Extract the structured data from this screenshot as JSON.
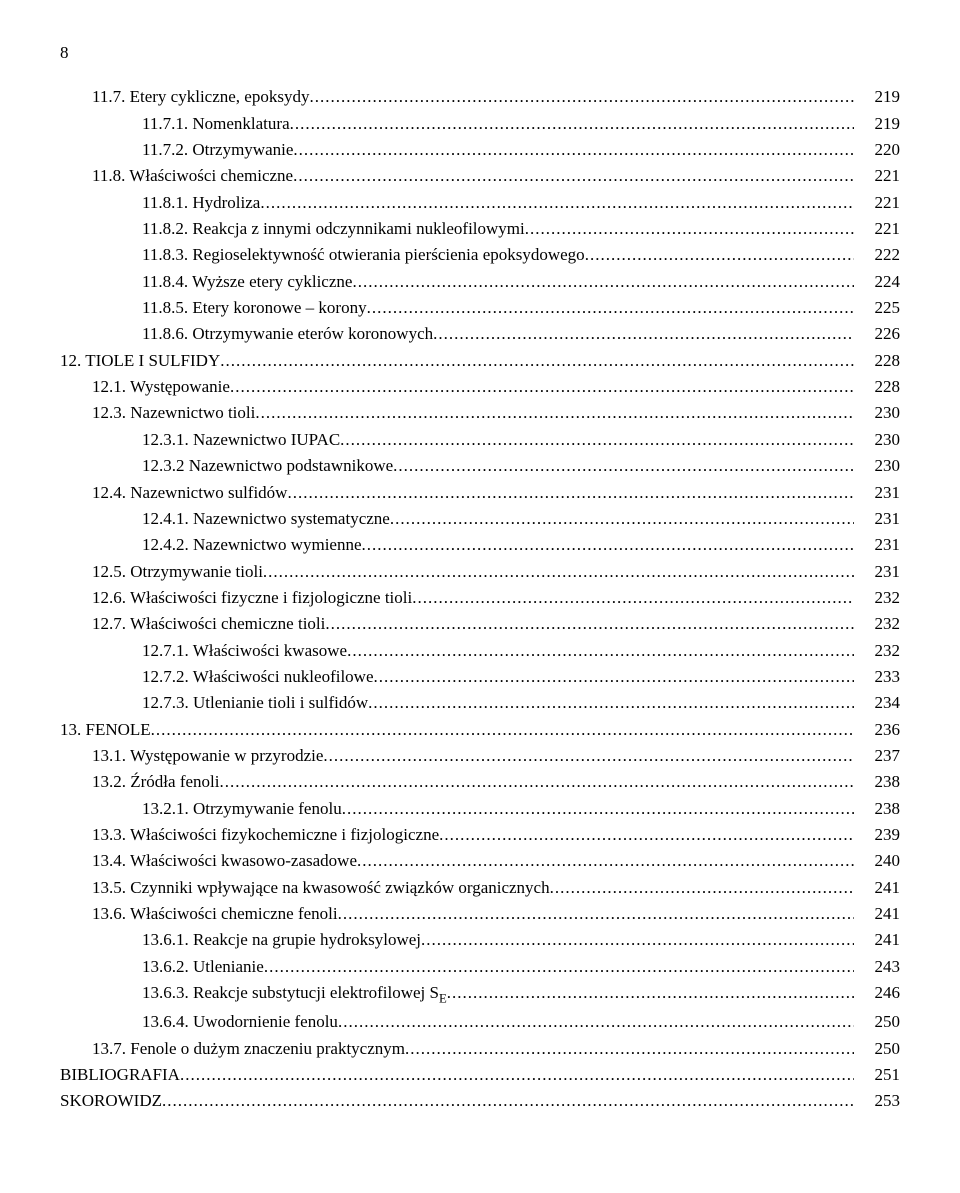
{
  "page_number": "8",
  "entries": [
    {
      "indent": 1,
      "label": "11.7. Etery cykliczne, epoksydy",
      "page": "219"
    },
    {
      "indent": 2,
      "label": "11.7.1. Nomenklatura",
      "page": "219"
    },
    {
      "indent": 2,
      "label": "11.7.2. Otrzymywanie",
      "page": "220"
    },
    {
      "indent": 1,
      "label": "11.8. Właściwości chemiczne",
      "page": "221"
    },
    {
      "indent": 2,
      "label": "11.8.1. Hydroliza",
      "page": "221"
    },
    {
      "indent": 2,
      "label": "11.8.2. Reakcja z innymi odczynnikami nukleofilowymi",
      "page": "221"
    },
    {
      "indent": 2,
      "label": "11.8.3. Regioselektywność otwierania pierścienia epoksydowego",
      "page": "222"
    },
    {
      "indent": 2,
      "label": "11.8.4. Wyższe etery cykliczne",
      "page": "224"
    },
    {
      "indent": 2,
      "label": "11.8.5. Etery koronowe – korony",
      "page": "225"
    },
    {
      "indent": 2,
      "label": "11.8.6. Otrzymywanie eterów koronowych",
      "page": "226"
    },
    {
      "indent": 0,
      "label": "12. TIOLE I SULFIDY",
      "page": "228"
    },
    {
      "indent": 1,
      "label": "12.1. Występowanie",
      "page": "228"
    },
    {
      "indent": 1,
      "label": "12.3. Nazewnictwo tioli",
      "page": "230"
    },
    {
      "indent": 2,
      "label": "12.3.1. Nazewnictwo IUPAC",
      "page": "230"
    },
    {
      "indent": 2,
      "label": "12.3.2  Nazewnictwo podstawnikowe",
      "page": "230"
    },
    {
      "indent": 1,
      "label": "12.4. Nazewnictwo sulfidów",
      "page": "231"
    },
    {
      "indent": 2,
      "label": "12.4.1. Nazewnictwo systematyczne",
      "page": "231"
    },
    {
      "indent": 2,
      "label": "12.4.2. Nazewnictwo wymienne",
      "page": "231"
    },
    {
      "indent": 1,
      "label": "12.5. Otrzymywanie tioli",
      "page": "231"
    },
    {
      "indent": 1,
      "label": "12.6. Właściwości fizyczne i fizjologiczne tioli",
      "page": "232"
    },
    {
      "indent": 1,
      "label": "12.7. Właściwości chemiczne tioli",
      "page": "232"
    },
    {
      "indent": 2,
      "label": "12.7.1. Właściwości kwasowe",
      "page": "232"
    },
    {
      "indent": 2,
      "label": "12.7.2. Właściwości nukleofilowe",
      "page": "233"
    },
    {
      "indent": 2,
      "label": "12.7.3. Utlenianie tioli i sulfidów",
      "page": "234"
    },
    {
      "indent": 0,
      "label": "13. FENOLE",
      "page": "236"
    },
    {
      "indent": 1,
      "label": "13.1. Występowanie w przyrodzie",
      "page": "237"
    },
    {
      "indent": 1,
      "label": "13.2. Źródła fenoli",
      "page": "238"
    },
    {
      "indent": 2,
      "label": "13.2.1. Otrzymywanie fenolu",
      "page": "238"
    },
    {
      "indent": 1,
      "label": "13.3. Właściwości fizykochemiczne i fizjologiczne",
      "page": "239"
    },
    {
      "indent": 1,
      "label": "13.4. Właściwości kwasowo-zasadowe",
      "page": "240"
    },
    {
      "indent": 1,
      "label": "13.5. Czynniki wpływające na kwasowość związków organicznych",
      "page": "241"
    },
    {
      "indent": 1,
      "label": "13.6. Właściwości chemiczne fenoli",
      "page": "241"
    },
    {
      "indent": 2,
      "label": "13.6.1. Reakcje na grupie hydroksylowej",
      "page": "241"
    },
    {
      "indent": 2,
      "label": "13.6.2. Utlenianie",
      "page": "243"
    },
    {
      "indent": 2,
      "label": "13.6.3. Reakcje substytucji elektrofilowej S",
      "sub": "E",
      "page": "246"
    },
    {
      "indent": 2,
      "label": "13.6.4. Uwodornienie fenolu",
      "page": "250"
    },
    {
      "indent": 1,
      "label": "13.7. Fenole o dużym znaczeniu praktycznym",
      "page": "250"
    },
    {
      "indent": 0,
      "label": "BIBLIOGRAFIA",
      "page": "251"
    },
    {
      "indent": 0,
      "label": "SKOROWIDZ",
      "page": "253"
    }
  ]
}
